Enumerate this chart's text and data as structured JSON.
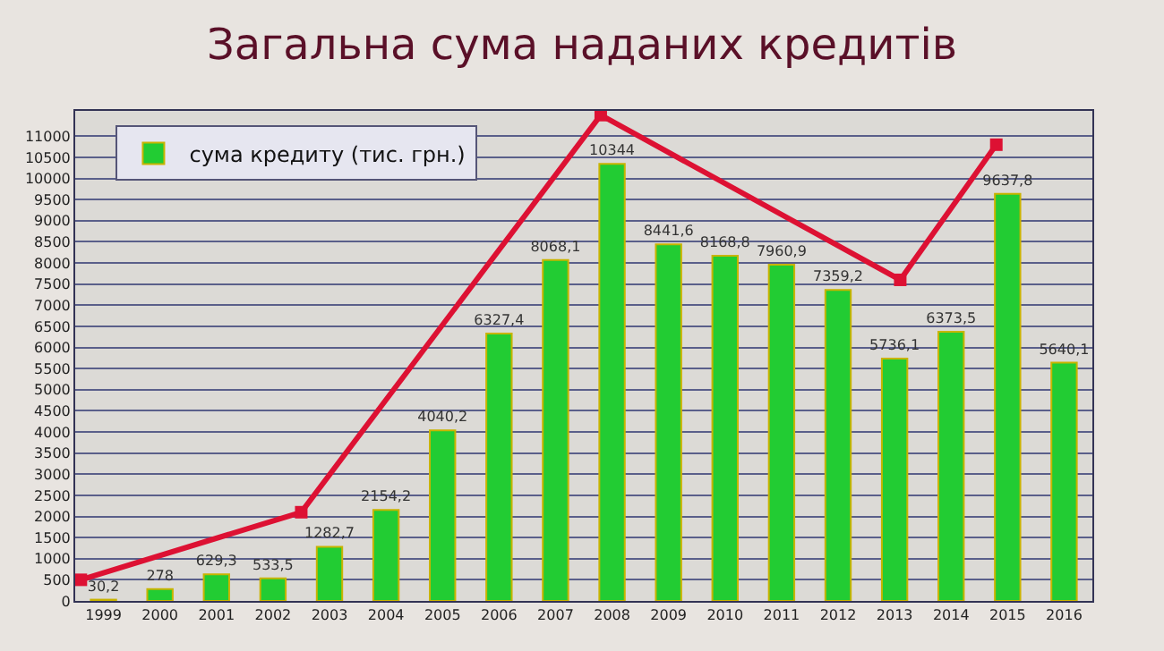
{
  "chart_data": {
    "type": "bar",
    "title": "Загальна сума наданих кредитів",
    "x": [
      1999,
      2000,
      2001,
      2002,
      2003,
      2004,
      2005,
      2006,
      2007,
      2008,
      2009,
      2010,
      2011,
      2012,
      2013,
      2014,
      2015,
      2016
    ],
    "xlim": [
      1998.5,
      2016.5
    ],
    "xticks": [
      1999,
      2000,
      2001,
      2002,
      2003,
      2004,
      2005,
      2006,
      2007,
      2008,
      2009,
      2010,
      2011,
      2012,
      2013,
      2014,
      2015,
      2016
    ],
    "ylim": [
      0,
      11600
    ],
    "yticks": [
      0,
      500,
      1000,
      1500,
      2000,
      2500,
      3000,
      3500,
      4000,
      4500,
      5000,
      5500,
      6000,
      6500,
      7000,
      7500,
      8000,
      8500,
      9000,
      9500,
      10000,
      10500,
      11000
    ],
    "grid": "y",
    "legend": "top left",
    "series": [
      {
        "name": "сума кредиту (тис. грн.)",
        "color": "#22cc33",
        "values": [
          30.2,
          278,
          629.3,
          533.5,
          1282.7,
          2154.2,
          4040.2,
          6327.4,
          8068.1,
          10344,
          8441.6,
          8168.8,
          7960.9,
          7359.2,
          5736.1,
          6373.5,
          9637.8,
          5640.1
        ],
        "value_labels": [
          "30,2",
          "278",
          "629,3",
          "533,5",
          "1282,7",
          "2154,2",
          "4040,2",
          "6327,4",
          "8068,1",
          "10344",
          "8441,6",
          "8168,8",
          "7960,9",
          "7359,2",
          "5736,1",
          "6373,5",
          "9637,8",
          "5640,1"
        ]
      },
      {
        "type": "line",
        "color": "#dd1133",
        "marker": "square",
        "x": [
          1998.6,
          2002.5,
          2007.8,
          2013.1,
          2014.8
        ],
        "values": [
          500,
          2100,
          11500,
          7600,
          10800
        ]
      }
    ]
  }
}
